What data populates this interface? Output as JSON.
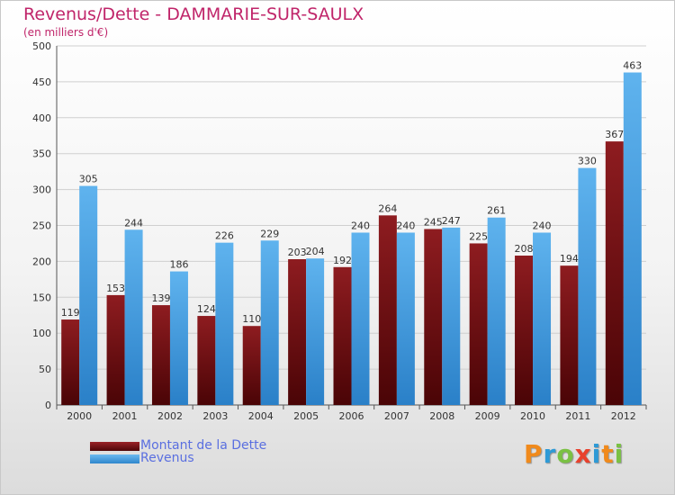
{
  "chart_data": {
    "type": "bar",
    "title": "Revenus/Dette - DAMMARIE-SUR-SAULX",
    "subtitle": "(en milliers d'€)",
    "xlabel": "",
    "ylabel": "",
    "ylim": [
      0,
      500
    ],
    "yticks": [
      0,
      50,
      100,
      150,
      200,
      250,
      300,
      350,
      400,
      450,
      500
    ],
    "grid": true,
    "categories": [
      "2000",
      "2001",
      "2002",
      "2003",
      "2004",
      "2005",
      "2006",
      "2007",
      "2008",
      "2009",
      "2010",
      "2011",
      "2012"
    ],
    "series": [
      {
        "name": "Montant de la Dette",
        "color": "#7a1418",
        "values": [
          119,
          153,
          139,
          124,
          110,
          203,
          192,
          264,
          245,
          225,
          208,
          194,
          367
        ]
      },
      {
        "name": "Revenus",
        "color": "#4aa3e6",
        "values": [
          305,
          244,
          186,
          226,
          229,
          204,
          240,
          240,
          247,
          261,
          240,
          330,
          463
        ]
      }
    ],
    "legend_position": "bottom-left"
  },
  "logo": {
    "letters": [
      "P",
      "r",
      "o",
      "x",
      "i",
      "t",
      "i"
    ],
    "colors": [
      "#f08a1c",
      "#2e9ad6",
      "#7ac143",
      "#e8412d",
      "#2e9ad6",
      "#f08a1c",
      "#7ac143"
    ]
  }
}
